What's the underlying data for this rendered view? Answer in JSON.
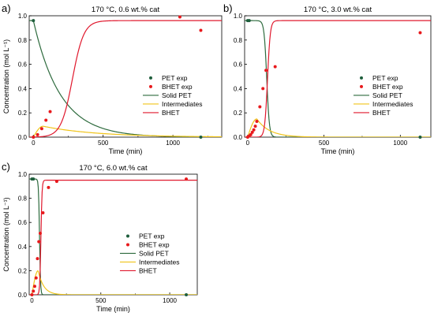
{
  "chart_data": [
    {
      "panel": "a)",
      "type": "line",
      "title": "170 °C, 0.6 wt.% cat",
      "xlabel": "Time (min)",
      "ylabel": "Concentration (mol L⁻¹)",
      "xlim": [
        -30,
        1350
      ],
      "ylim": [
        0,
        1.0
      ],
      "xticks": [
        0,
        500,
        1000
      ],
      "yticks": [
        0.0,
        0.2,
        0.4,
        0.6,
        0.8,
        1.0
      ],
      "legend": "center-right",
      "series": [
        {
          "name": "PET exp",
          "kind": "scatter",
          "color": "#1e5e3c",
          "x": [
            0,
            1200
          ],
          "y": [
            0.96,
            0.0
          ]
        },
        {
          "name": "BHET exp",
          "kind": "scatter",
          "color": "#e8191c",
          "x": [
            0,
            30,
            60,
            90,
            120,
            1050,
            1200
          ],
          "y": [
            0.0,
            0.02,
            0.07,
            0.14,
            0.21,
            0.99,
            0.88
          ]
        },
        {
          "name": "Solid PET",
          "kind": "line",
          "color": "#2e6b3e",
          "model": "decay",
          "params": {
            "a": 0.96,
            "k": 0.0052
          }
        },
        {
          "name": "Intermediates",
          "kind": "line",
          "color": "#f0c419",
          "model": "intermediate",
          "params": {
            "peak": 0.09,
            "tpeak": 70,
            "k": 0.0052,
            "kd": 0.0026
          }
        },
        {
          "name": "BHET",
          "kind": "line",
          "color": "#e0182d",
          "model": "sigmoid",
          "params": {
            "a": 0.96,
            "t0": 280,
            "w": 180
          }
        }
      ]
    },
    {
      "panel": "b)",
      "type": "line",
      "title": "170 °C, 3.0 wt.% cat",
      "xlabel": "Time (min)",
      "ylabel": "",
      "xlim": [
        -20,
        1200
      ],
      "ylim": [
        0,
        1.0
      ],
      "xticks": [
        0,
        500,
        1000
      ],
      "yticks": [
        0.0,
        0.2,
        0.4,
        0.6,
        0.8,
        1.0
      ],
      "legend": "center-right",
      "series": [
        {
          "name": "PET exp",
          "kind": "scatter",
          "color": "#1e5e3c",
          "x": [
            0,
            10,
            1130
          ],
          "y": [
            0.96,
            0.96,
            0.0
          ]
        },
        {
          "name": "BHET exp",
          "kind": "scatter",
          "color": "#e8191c",
          "x": [
            0,
            10,
            20,
            30,
            40,
            50,
            60,
            80,
            100,
            120,
            180,
            1130
          ],
          "y": [
            0.0,
            0.01,
            0.02,
            0.04,
            0.06,
            0.09,
            0.13,
            0.25,
            0.4,
            0.55,
            0.58,
            0.86
          ]
        },
        {
          "name": "Solid PET",
          "kind": "line",
          "color": "#2e6b3e",
          "model": "delayed",
          "params": {
            "a": 0.96,
            "t0": 125,
            "w": 38
          }
        },
        {
          "name": "Intermediates",
          "kind": "line",
          "color": "#f0c419",
          "model": "intermediate",
          "params": {
            "peak": 0.15,
            "tpeak": 60,
            "k": 0.03,
            "kd": 0.012
          }
        },
        {
          "name": "BHET",
          "kind": "line",
          "color": "#e0182d",
          "model": "sigmoid",
          "params": {
            "a": 0.96,
            "t0": 130,
            "w": 40
          }
        }
      ]
    },
    {
      "panel": "c)",
      "type": "line",
      "title": "170 °C, 6.0 wt.% cat",
      "xlabel": "Time (min)",
      "ylabel": "Concentration (mol L⁻¹)",
      "xlim": [
        -20,
        1200
      ],
      "ylim": [
        0,
        1.0
      ],
      "xticks": [
        0,
        500,
        1000
      ],
      "yticks": [
        0.0,
        0.2,
        0.4,
        0.6,
        0.8,
        1.0
      ],
      "legend": "center-right",
      "series": [
        {
          "name": "PET exp",
          "kind": "scatter",
          "color": "#1e5e3c",
          "x": [
            0,
            10,
            1120
          ],
          "y": [
            0.96,
            0.96,
            0.0
          ]
        },
        {
          "name": "BHET exp",
          "kind": "scatter",
          "color": "#e8191c",
          "x": [
            0,
            10,
            20,
            30,
            40,
            50,
            60,
            80,
            120,
            180,
            1120
          ],
          "y": [
            0.0,
            0.03,
            0.07,
            0.14,
            0.3,
            0.44,
            0.51,
            0.68,
            0.89,
            0.94,
            0.96
          ]
        },
        {
          "name": "Solid PET",
          "kind": "line",
          "color": "#2e6b3e",
          "model": "delayed",
          "params": {
            "a": 0.96,
            "t0": 55,
            "w": 16
          }
        },
        {
          "name": "Intermediates",
          "kind": "line",
          "color": "#f0c419",
          "model": "intermediate",
          "params": {
            "peak": 0.2,
            "tpeak": 45,
            "k": 0.06,
            "kd": 0.025
          }
        },
        {
          "name": "BHET",
          "kind": "line",
          "color": "#e0182d",
          "model": "sigmoid",
          "params": {
            "a": 0.95,
            "t0": 65,
            "w": 18
          }
        }
      ]
    }
  ]
}
